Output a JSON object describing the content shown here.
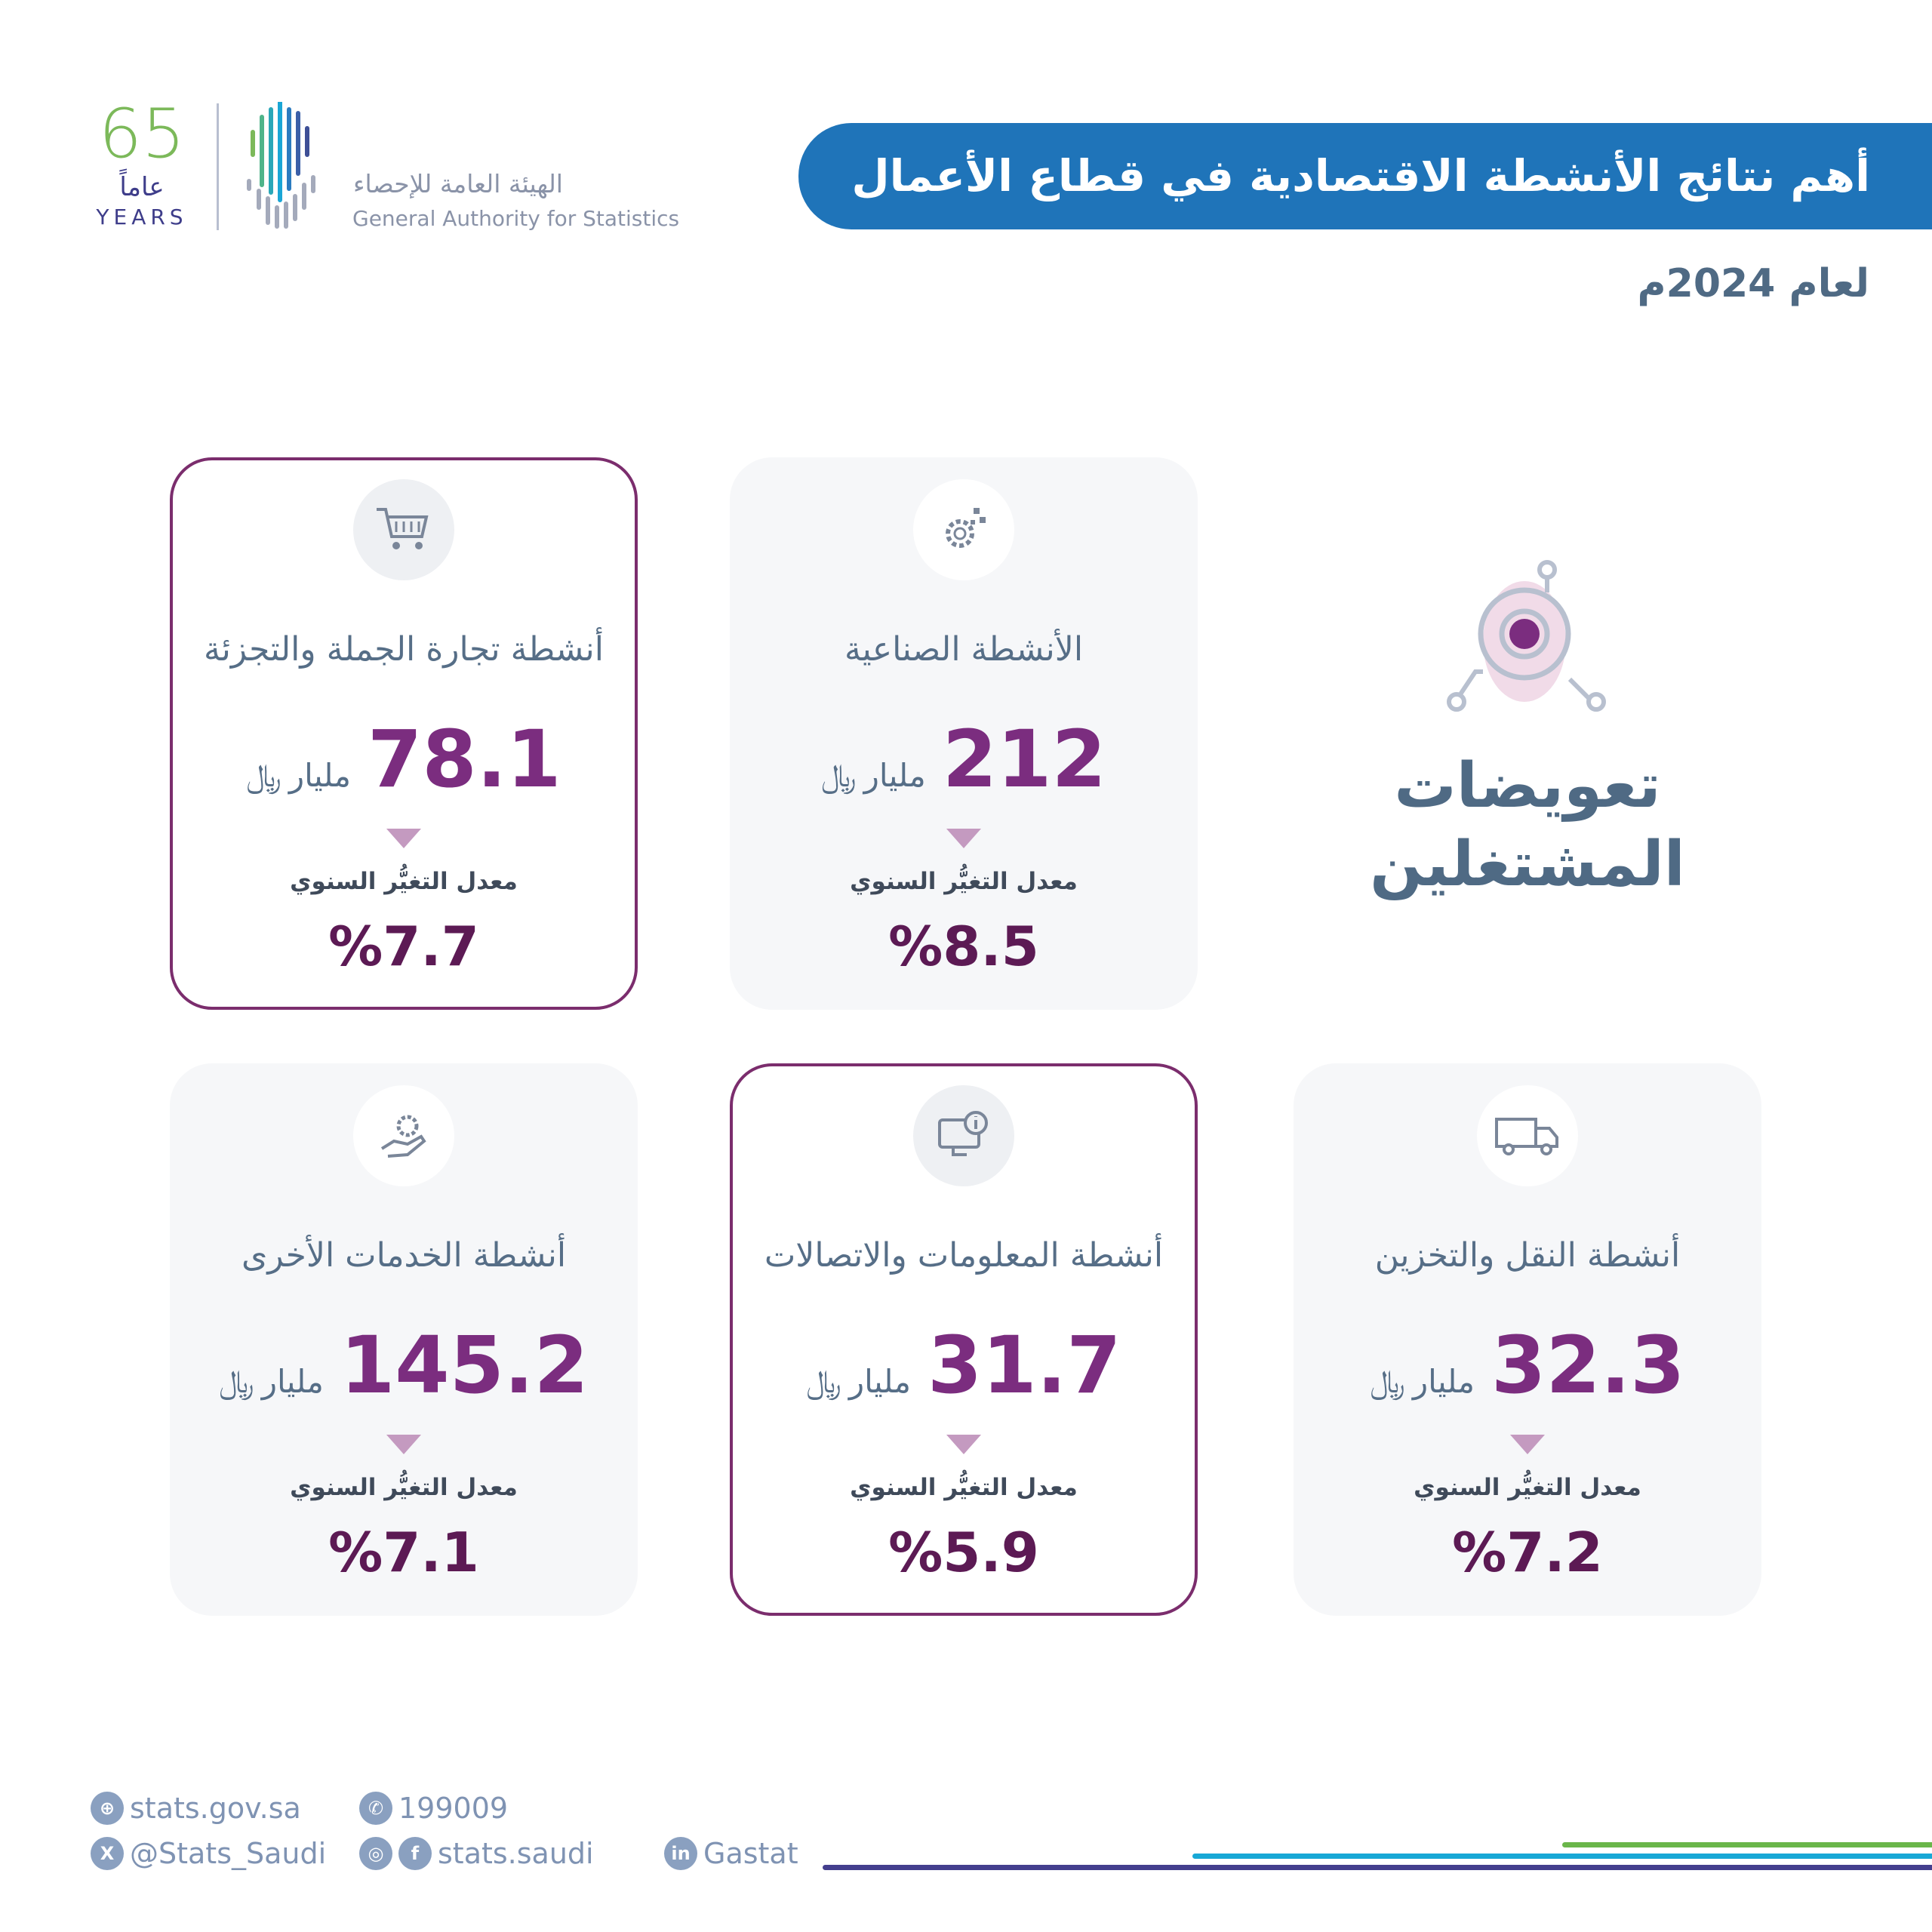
{
  "header": {
    "title": "أهم نتائج الأنشطة الاقتصادية في قطاع الأعمال",
    "subtitle": "لعام 2024م"
  },
  "logo": {
    "years_number": "65",
    "years_ar": "عاماً",
    "years_en": "YEARS",
    "org_ar": "الهيئة العامة للإحصاء",
    "org_en": "General Authority for Statistics"
  },
  "feature": {
    "title_line1": "تعويضات",
    "title_line2": "المشتغلين",
    "icon": "employee-compensation-icon"
  },
  "unit": "مليار",
  "rate_label": "معدل التغيُّر السنوي",
  "cards": [
    {
      "label": "أنشطة تجارة الجملة والتجزئة",
      "value": "78.1",
      "change": "%7.7",
      "icon": "shopping-cart-icon"
    },
    {
      "label": "الأنشطة الصناعية",
      "value": "212",
      "change": "%8.5",
      "icon": "gears-icon"
    },
    {
      "label": "أنشطة الخدمات الأخرى",
      "value": "145.2",
      "change": "%7.1",
      "icon": "hand-gear-icon"
    },
    {
      "label": "أنشطة المعلومات والاتصالات",
      "value": "31.7",
      "change": "%5.9",
      "icon": "computer-info-icon"
    },
    {
      "label": "أنشطة النقل والتخزين",
      "value": "32.3",
      "change": "%7.2",
      "icon": "truck-icon"
    }
  ],
  "footer": {
    "website": "stats.gov.sa",
    "phone": "199009",
    "twitter": "@Stats_Saudi",
    "social": "stats.saudi",
    "linkedin": "Gastat"
  },
  "colors": {
    "banner": "#1f74b9",
    "value": "#7b2d7f",
    "change": "#5c1a54",
    "accent_border": "#7b2d6d"
  }
}
